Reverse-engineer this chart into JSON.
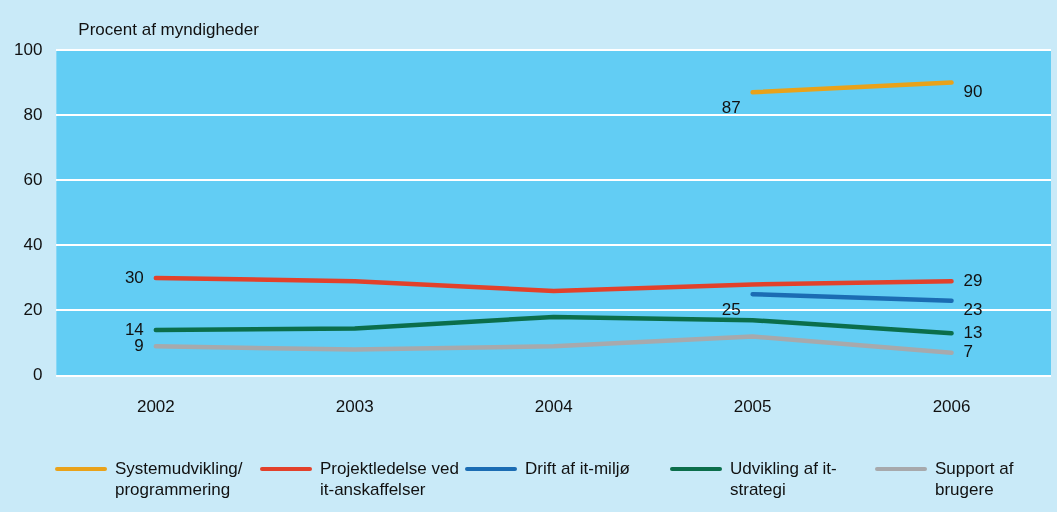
{
  "chart_data": {
    "type": "line",
    "ylabel": "Procent af myndigheder",
    "categories": [
      "2002",
      "2003",
      "2004",
      "2005",
      "2006"
    ],
    "ylim": [
      0,
      100
    ],
    "yticks": [
      0,
      20,
      40,
      60,
      80,
      100
    ],
    "grid": "y",
    "legend": "bottom",
    "marker": "none",
    "line_style": "solid",
    "series": [
      {
        "name": "Systemudvikling/ programmering",
        "color": "#e9a21a",
        "values": [
          null,
          null,
          null,
          87,
          90
        ],
        "value_labels": [
          null,
          null,
          null,
          "87",
          "90"
        ]
      },
      {
        "name": "Projektledelse ved it-anskaffelser",
        "color": "#e2412b",
        "values": [
          30,
          29,
          26,
          28,
          29
        ],
        "value_labels": [
          "30",
          null,
          null,
          null,
          "29"
        ]
      },
      {
        "name": "Drift af it-miljø",
        "color": "#1b6cb3",
        "values": [
          null,
          null,
          null,
          25,
          23
        ],
        "value_labels": [
          null,
          null,
          null,
          "25",
          "23"
        ]
      },
      {
        "name": "Udvikling af it-strategi",
        "color": "#0b6e4b",
        "values": [
          14,
          14.5,
          18,
          17,
          13
        ],
        "value_labels": [
          "14",
          null,
          null,
          null,
          "13"
        ]
      },
      {
        "name": "Support af brugere",
        "color": "#a7a9ac",
        "values": [
          9,
          8,
          9,
          12,
          7
        ],
        "value_labels": [
          "9",
          null,
          null,
          null,
          "7"
        ]
      }
    ]
  }
}
